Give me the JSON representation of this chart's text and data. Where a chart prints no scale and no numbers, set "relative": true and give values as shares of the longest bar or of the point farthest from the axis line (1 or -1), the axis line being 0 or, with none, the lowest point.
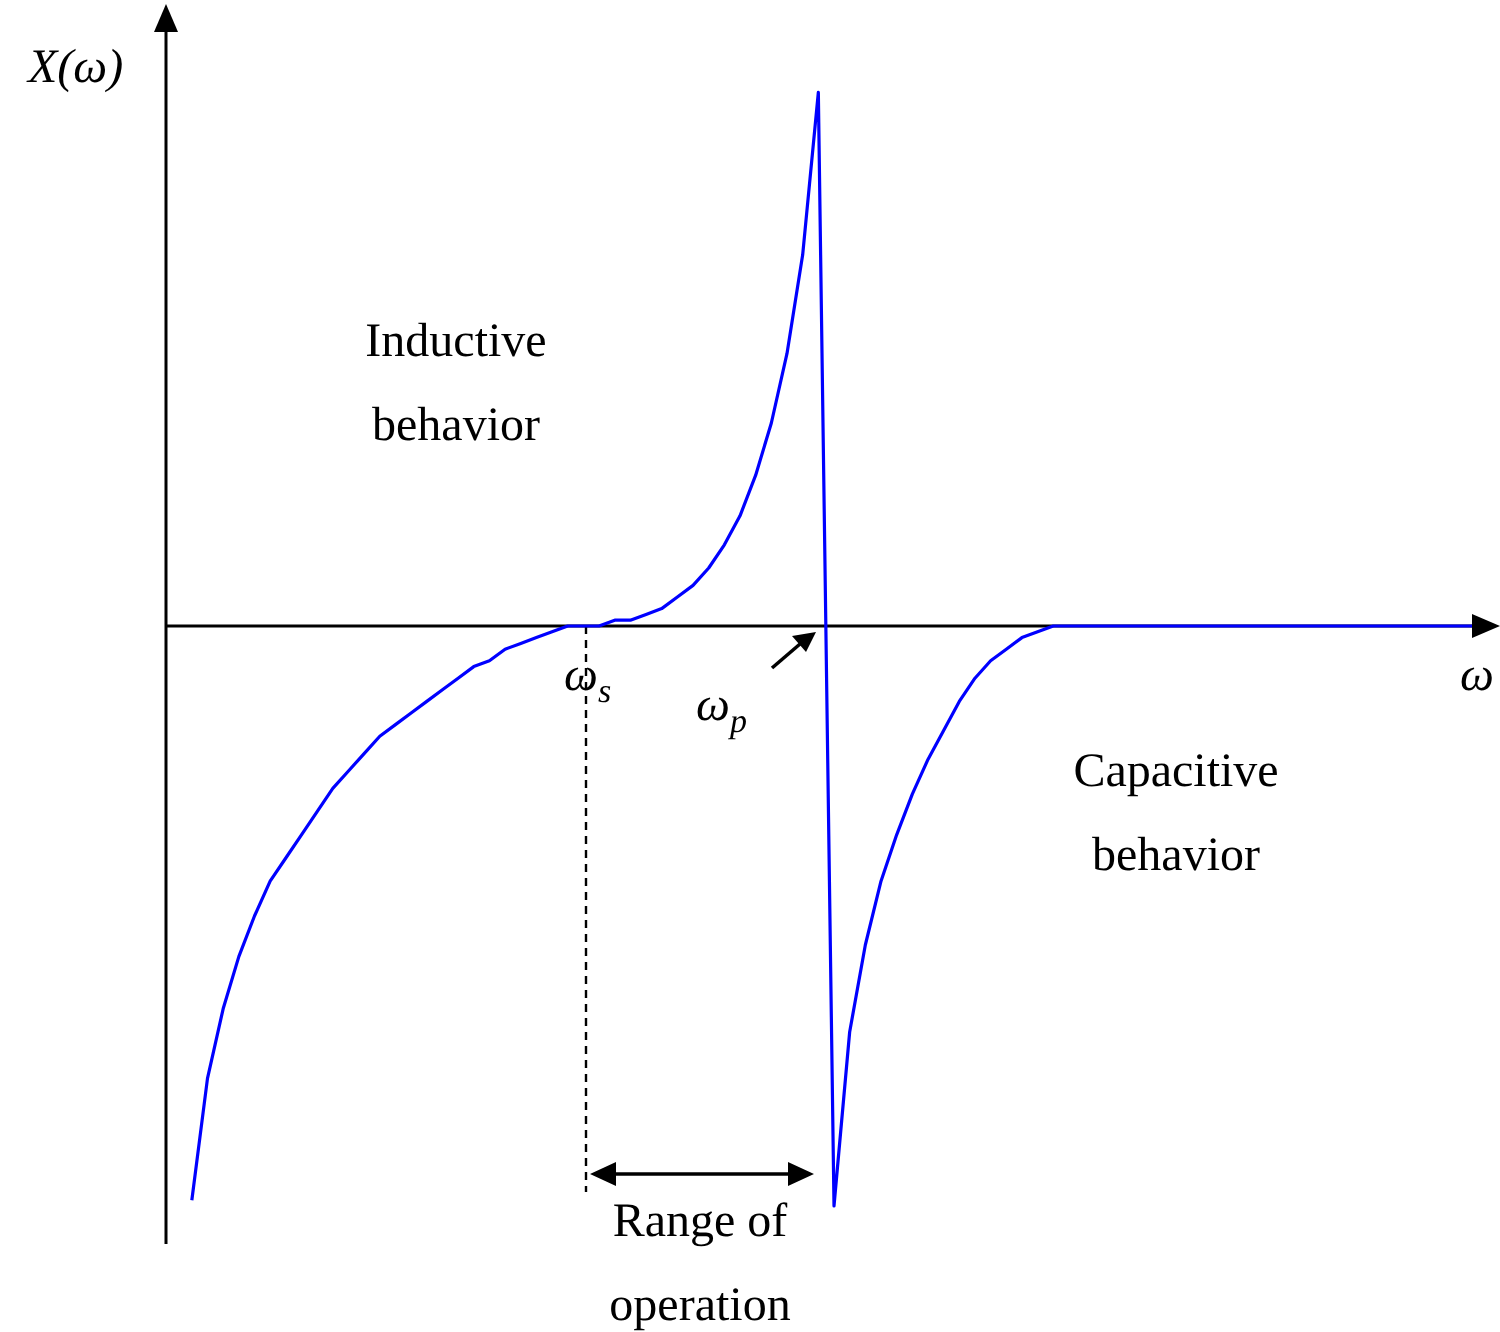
{
  "chart_data": {
    "type": "line",
    "relative": true,
    "xlabel": "ω",
    "ylabel": "X(ω)",
    "color": "#0000ff",
    "categories": [
      null,
      null,
      null,
      null,
      null,
      null,
      null,
      null,
      null,
      null,
      null,
      null,
      null,
      null,
      null,
      null,
      null,
      null,
      null,
      null,
      null,
      null,
      null,
      null,
      null,
      null,
      null,
      null,
      null,
      null,
      null,
      null,
      null,
      null,
      null,
      null,
      null,
      null,
      null,
      null,
      null,
      null,
      null,
      null,
      null,
      null,
      null,
      null,
      null,
      null,
      null,
      null,
      null,
      null,
      null,
      null,
      null,
      null,
      null,
      null,
      null,
      null,
      null,
      null,
      null,
      null,
      null,
      null,
      null,
      null,
      null,
      null,
      null,
      null,
      null,
      null,
      null,
      null,
      null,
      null,
      null,
      null,
      null
    ],
    "values": [
      -0.99,
      -0.78,
      -0.66,
      -0.57,
      -0.5,
      -0.44,
      -0.4,
      -0.36,
      -0.32,
      -0.28,
      -0.25,
      -0.22,
      -0.19,
      -0.17,
      -0.15,
      -0.13,
      -0.11,
      -0.09,
      -0.07,
      -0.06,
      -0.04,
      -0.03,
      -0.02,
      -0.01,
      0,
      0,
      0,
      0.01,
      0.01,
      0.02,
      0.03,
      0.05,
      0.07,
      0.1,
      0.14,
      0.19,
      0.26,
      0.35,
      0.47,
      0.64,
      0.92,
      -1,
      -0.7,
      -0.55,
      -0.44,
      -0.36,
      -0.29,
      -0.23,
      -0.18,
      -0.13,
      -0.09,
      -0.06,
      -0.04,
      -0.02,
      -0.01,
      0,
      0,
      0,
      0,
      0,
      0,
      0,
      0,
      0,
      0,
      0,
      0,
      0,
      0,
      0,
      0,
      0,
      0,
      0,
      0,
      0,
      0,
      0,
      0,
      0,
      0,
      0,
      0
    ],
    "annotations": [
      "Inductive behavior",
      "Capacitive behavior",
      "ω$_{s}$",
      "ω$_{p}$",
      "Range of operation"
    ]
  }
}
